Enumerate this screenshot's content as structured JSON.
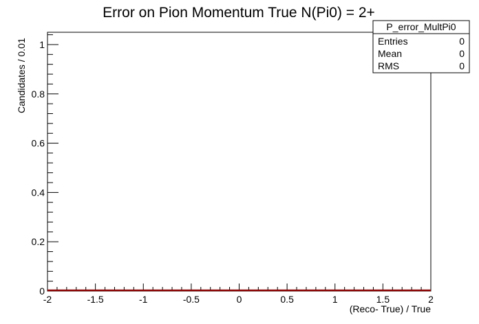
{
  "chart_data": {
    "type": "line",
    "title": "Error on Pion Momentum True N(Pi0) = 2+",
    "xlabel": "(Reco- True) / True",
    "ylabel": "Candidates / 0.01",
    "xlim": [
      -2,
      2
    ],
    "ylim": [
      0,
      1.05
    ],
    "x_ticks": [
      -2,
      -1.5,
      -1,
      -0.5,
      0,
      0.5,
      1,
      1.5,
      2
    ],
    "x_tick_labels": [
      "-2",
      "-1.5",
      "-1",
      "-0.5",
      "0",
      "0.5",
      "1",
      "1.5",
      "2"
    ],
    "y_ticks": [
      0,
      0.2,
      0.4,
      0.6,
      0.8,
      1
    ],
    "y_tick_labels": [
      "0",
      "0.2",
      "0.4",
      "0.6",
      "0.8",
      "1"
    ],
    "series": [
      {
        "x": [
          -2,
          2
        ],
        "values": [
          0,
          0
        ],
        "color": "#8b0000"
      }
    ],
    "grid": false,
    "stats_box": {
      "name": "P_error_MultPi0",
      "rows": [
        {
          "label": "Entries",
          "value": "0"
        },
        {
          "label": "Mean",
          "value": "0"
        },
        {
          "label": "RMS",
          "value": "0"
        }
      ],
      "position": "top-right"
    }
  }
}
